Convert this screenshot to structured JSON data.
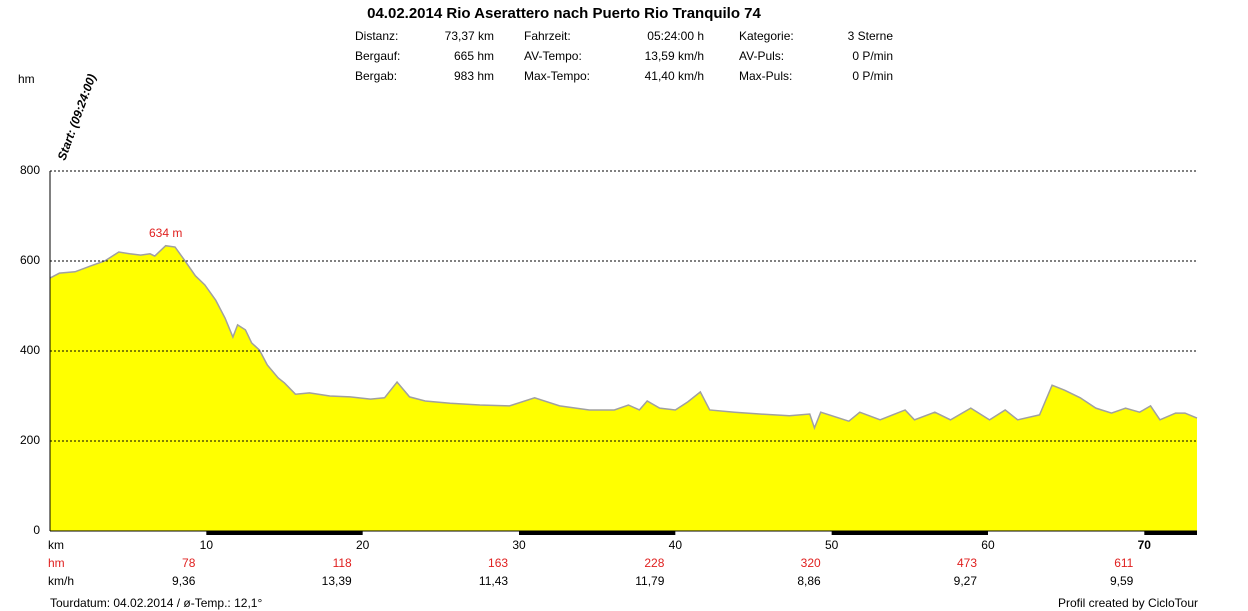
{
  "chart_data": {
    "type": "area",
    "title": "04.02.2014 Rio Aserattero nach Puerto Rio Tranquilo 74",
    "info": [
      [
        {
          "label": "Distanz:",
          "value": "73,37 km"
        },
        {
          "label": "Fahrzeit:",
          "value": "05:24:00 h"
        },
        {
          "label": "Kategorie:",
          "value": "3 Sterne"
        }
      ],
      [
        {
          "label": "Bergauf:",
          "value": "665 hm"
        },
        {
          "label": "AV-Tempo:",
          "value": "13,59 km/h"
        },
        {
          "label": "AV-Puls:",
          "value": "0 P/min"
        }
      ],
      [
        {
          "label": "Bergab:",
          "value": "983 hm"
        },
        {
          "label": "Max-Tempo:",
          "value": "41,40 km/h"
        },
        {
          "label": "Max-Puls:",
          "value": "0 P/min"
        }
      ]
    ],
    "ylabel": "hm",
    "xlabel": "km",
    "start_label": "Start: (09:24:00)",
    "color": "#ffff00",
    "line_color": "#a0a0a0",
    "x": [
      0,
      0.6,
      1.6,
      2.6,
      3.5,
      4.4,
      5.1,
      5.8,
      6.4,
      6.7,
      7.4,
      8.0,
      8.6,
      9.3,
      9.9,
      10.6,
      11.2,
      11.7,
      12.0,
      12.5,
      12.9,
      13.4,
      13.9,
      14.6,
      15.0,
      15.7,
      16.6,
      17.9,
      19.2,
      20.5,
      21.4,
      22.2,
      23.0,
      24.0,
      25.6,
      27.5,
      29.4,
      31.0,
      32.6,
      34.5,
      36.1,
      37.0,
      37.7,
      38.2,
      39.0,
      40.0,
      40.8,
      41.6,
      42.2,
      43.8,
      45.4,
      47.3,
      48.6,
      48.9,
      49.3,
      51.1,
      51.8,
      53.1,
      54.7,
      55.3,
      56.6,
      57.6,
      58.9,
      60.1,
      61.1,
      61.9,
      63.3,
      64.1,
      64.9,
      65.9,
      66.9,
      67.9,
      68.8,
      69.7,
      70.4,
      71.0,
      72.0,
      72.6,
      73.37
    ],
    "values": [
      562,
      573,
      576,
      589,
      600,
      620,
      616,
      613,
      616,
      611,
      634,
      631,
      602,
      567,
      547,
      513,
      473,
      431,
      458,
      447,
      418,
      402,
      369,
      340,
      329,
      304,
      307,
      300,
      298,
      293,
      296,
      331,
      298,
      289,
      284,
      280,
      278,
      296,
      278,
      269,
      269,
      280,
      269,
      289,
      273,
      269,
      287,
      309,
      269,
      264,
      260,
      256,
      260,
      229,
      264,
      244,
      264,
      247,
      269,
      247,
      264,
      247,
      273,
      247,
      269,
      247,
      258,
      324,
      313,
      296,
      273,
      262,
      273,
      264,
      278,
      247,
      262,
      262,
      251
    ],
    "peak": {
      "value": 634,
      "label": "634 m"
    },
    "xlim": [
      0,
      73.37
    ],
    "ylim": [
      0,
      800
    ],
    "xticks": [
      10,
      20,
      30,
      40,
      50,
      60,
      70
    ],
    "yticks": [
      0,
      200,
      400,
      600,
      800
    ],
    "grid": true,
    "hm_row": {
      "label": "hm",
      "values": [
        78,
        118,
        163,
        228,
        320,
        473,
        611
      ]
    },
    "speed_row": {
      "label": "km/h",
      "values": [
        9.36,
        13.39,
        11.43,
        11.79,
        8.86,
        9.27,
        9.59
      ],
      "value_labels": [
        "9,36",
        "13,39",
        "11,43",
        "11,79",
        "8,86",
        "9,27",
        "9,59"
      ]
    },
    "footer_left": "Tourdatum: 04.02.2014 / ø-Temp.: 12,1°",
    "footer_right": "Profil created by CicloTour"
  }
}
